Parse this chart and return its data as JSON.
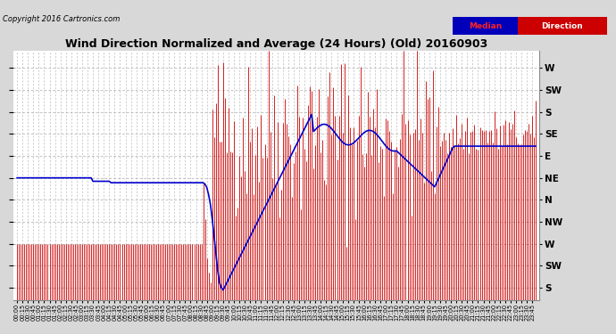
{
  "title": "Wind Direction Normalized and Average (24 Hours) (Old) 20160903",
  "copyright": "Copyright 2016 Cartronics.com",
  "bg_color": "#d8d8d8",
  "plot_bg_color": "#ffffff",
  "grid_color": "#aaaaaa",
  "ytick_labels": [
    "W",
    "SW",
    "S",
    "SE",
    "E",
    "NE",
    "N",
    "NW",
    "W",
    "SW",
    "S"
  ],
  "ytick_values": [
    360,
    315,
    270,
    225,
    180,
    135,
    90,
    45,
    0,
    -45,
    -90
  ],
  "ylim": [
    -115,
    395
  ],
  "legend_median_bg": "#0000bb",
  "legend_median_text": "#ff2222",
  "legend_direction_bg": "#cc0000",
  "legend_direction_text": "#ffffff",
  "bar_color": "#cc0000",
  "line_color": "#0000cc",
  "line_width": 1.2,
  "n_points": 288,
  "figsize": [
    6.9,
    3.75
  ],
  "dpi": 100
}
